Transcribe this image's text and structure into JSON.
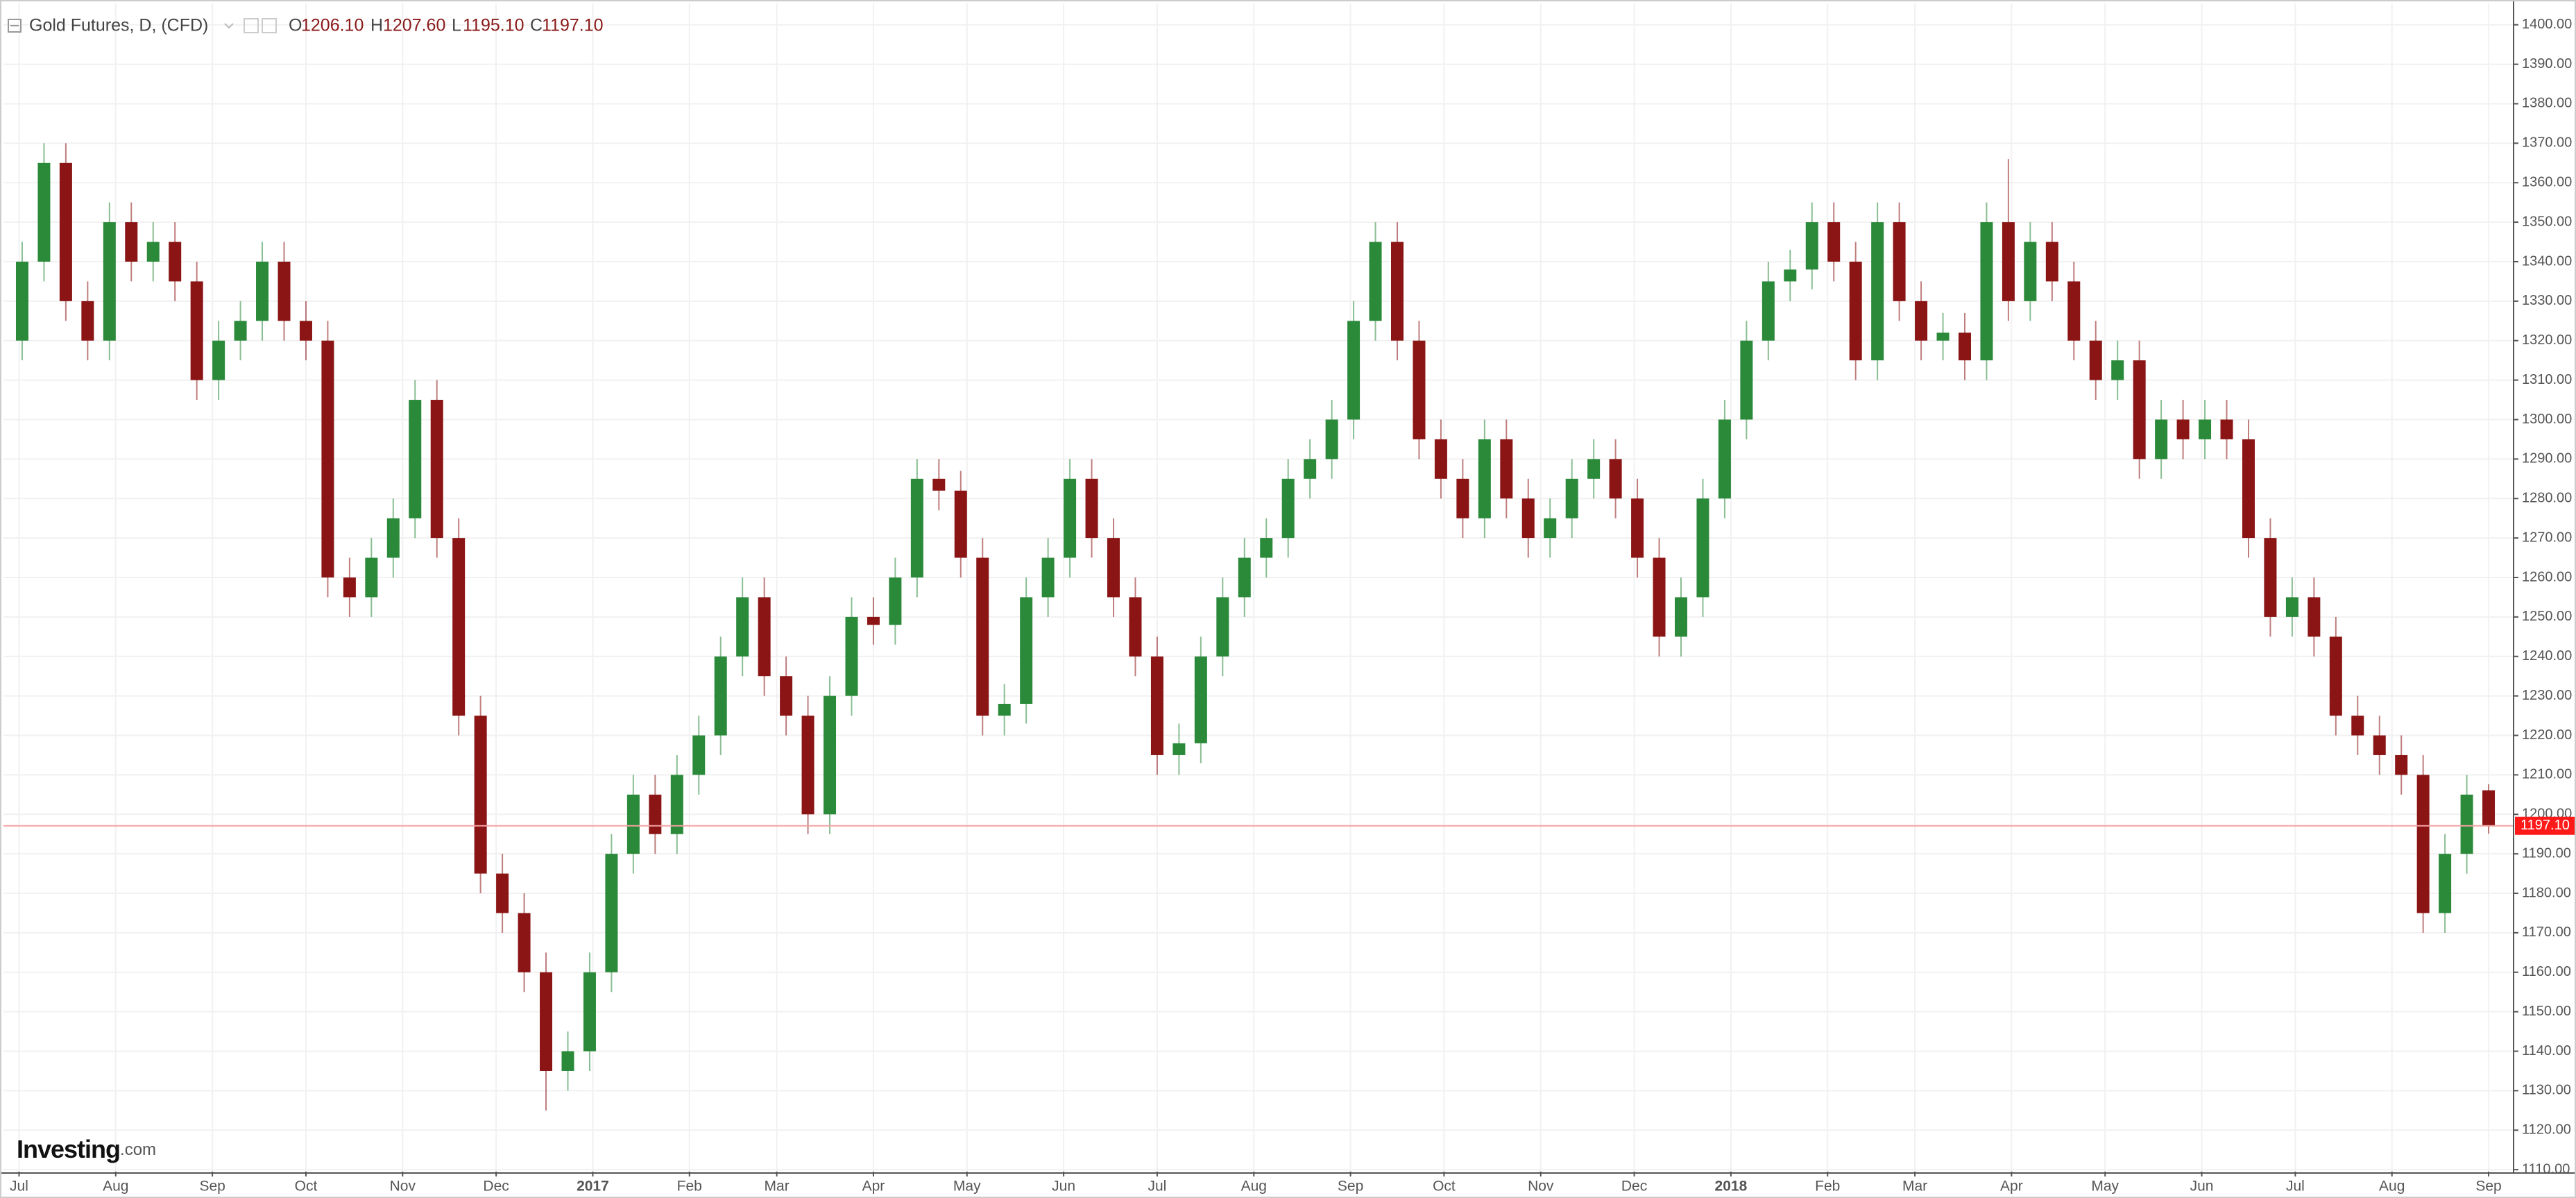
{
  "chart_data": {
    "type": "candlestick",
    "header": {
      "title": "Gold Futures, D, (CFD)",
      "ohlc": [
        {
          "name": "O",
          "value": "1206.10"
        },
        {
          "name": "H",
          "value": "1207.60"
        },
        {
          "name": "L",
          "value": "1195.10"
        },
        {
          "name": "C",
          "value": "1197.10"
        }
      ]
    },
    "logo": {
      "name": "Investing",
      "suffix": ".com"
    },
    "colors": {
      "up": "#2b8a3a",
      "down": "#8b1515",
      "last_price": "#f2a3a3",
      "last_price_label": "#ff1a1a",
      "grid": "#f1f1f1"
    },
    "grid": true,
    "last_price": {
      "value": 1197.1,
      "label": "1197.10"
    },
    "x": [
      1,
      8,
      15,
      22,
      29,
      36,
      43,
      50,
      57,
      64,
      71,
      78,
      85,
      92,
      99,
      106,
      113,
      120,
      127,
      134,
      141,
      148,
      155,
      162,
      169,
      176,
      183,
      190,
      197,
      204,
      211,
      218,
      225,
      232,
      239,
      246,
      253,
      260,
      267,
      274,
      281,
      288,
      295,
      302,
      309,
      316,
      323,
      330,
      337,
      344,
      351,
      358,
      365,
      372,
      379,
      386,
      393,
      400,
      407,
      414,
      421,
      428,
      435,
      442,
      449,
      456,
      463,
      470,
      477,
      484,
      491,
      498,
      505,
      512,
      519,
      526,
      533,
      540,
      547,
      554,
      561,
      568,
      575,
      582,
      589,
      596,
      603,
      610,
      617,
      624,
      631,
      638,
      645,
      652,
      659,
      666,
      673,
      680,
      687,
      694,
      701,
      708,
      715,
      722,
      729,
      736,
      743,
      750,
      757,
      764,
      771,
      778,
      785,
      792
    ],
    "open": [
      1320,
      1340,
      1365,
      1330,
      1320,
      1350,
      1340,
      1345,
      1335,
      1310,
      1320,
      1325,
      1340,
      1325,
      1320,
      1260,
      1255,
      1265,
      1275,
      1305,
      1270,
      1225,
      1185,
      1175,
      1160,
      1135,
      1140,
      1160,
      1190,
      1205,
      1195,
      1210,
      1220,
      1240,
      1255,
      1235,
      1225,
      1200,
      1230,
      1250,
      1248,
      1260,
      1285,
      1282,
      1265,
      1225,
      1228,
      1255,
      1265,
      1285,
      1270,
      1255,
      1240,
      1215,
      1218,
      1240,
      1255,
      1265,
      1270,
      1285,
      1290,
      1300,
      1325,
      1345,
      1320,
      1295,
      1285,
      1275,
      1295,
      1280,
      1270,
      1275,
      1285,
      1290,
      1280,
      1265,
      1245,
      1255,
      1280,
      1300,
      1320,
      1335,
      1338,
      1350,
      1340,
      1315,
      1350,
      1330,
      1320,
      1322,
      1315,
      1350,
      1330,
      1345,
      1335,
      1320,
      1310,
      1315,
      1290,
      1300,
      1295,
      1300,
      1295,
      1270,
      1250,
      1255,
      1245,
      1225,
      1220,
      1215,
      1210,
      1175,
      1190,
      1206.1
    ],
    "high": [
      1345,
      1370,
      1370,
      1335,
      1355,
      1355,
      1350,
      1350,
      1340,
      1325,
      1330,
      1345,
      1345,
      1330,
      1325,
      1265,
      1270,
      1280,
      1310,
      1310,
      1275,
      1230,
      1190,
      1180,
      1165,
      1145,
      1165,
      1195,
      1210,
      1210,
      1215,
      1225,
      1245,
      1260,
      1260,
      1240,
      1230,
      1235,
      1255,
      1255,
      1265,
      1290,
      1290,
      1287,
      1270,
      1233,
      1260,
      1270,
      1290,
      1290,
      1275,
      1260,
      1245,
      1223,
      1245,
      1260,
      1270,
      1275,
      1290,
      1295,
      1305,
      1330,
      1350,
      1350,
      1325,
      1300,
      1290,
      1300,
      1300,
      1285,
      1280,
      1290,
      1295,
      1295,
      1285,
      1270,
      1260,
      1285,
      1305,
      1325,
      1340,
      1343,
      1355,
      1355,
      1345,
      1355,
      1355,
      1335,
      1327,
      1327,
      1355,
      1366,
      1350,
      1350,
      1340,
      1325,
      1320,
      1320,
      1305,
      1305,
      1305,
      1305,
      1300,
      1275,
      1260,
      1260,
      1250,
      1230,
      1225,
      1220,
      1215,
      1195,
      1210,
      1207.6
    ],
    "low": [
      1315,
      1335,
      1325,
      1315,
      1315,
      1335,
      1335,
      1330,
      1305,
      1305,
      1315,
      1320,
      1320,
      1315,
      1255,
      1250,
      1250,
      1260,
      1270,
      1265,
      1220,
      1180,
      1170,
      1155,
      1125,
      1130,
      1135,
      1155,
      1185,
      1190,
      1190,
      1205,
      1215,
      1235,
      1230,
      1220,
      1195,
      1195,
      1225,
      1243,
      1243,
      1255,
      1277,
      1260,
      1220,
      1220,
      1223,
      1250,
      1260,
      1265,
      1250,
      1235,
      1210,
      1210,
      1213,
      1235,
      1250,
      1260,
      1265,
      1280,
      1285,
      1295,
      1320,
      1315,
      1290,
      1280,
      1270,
      1270,
      1275,
      1265,
      1265,
      1270,
      1280,
      1275,
      1260,
      1240,
      1240,
      1250,
      1275,
      1295,
      1315,
      1330,
      1333,
      1335,
      1310,
      1310,
      1325,
      1315,
      1315,
      1310,
      1310,
      1325,
      1325,
      1330,
      1315,
      1305,
      1305,
      1285,
      1285,
      1290,
      1290,
      1290,
      1265,
      1245,
      1245,
      1240,
      1220,
      1215,
      1210,
      1205,
      1170,
      1170,
      1185,
      1195.1
    ],
    "close": [
      1340,
      1365,
      1330,
      1320,
      1350,
      1340,
      1345,
      1335,
      1310,
      1320,
      1325,
      1340,
      1325,
      1320,
      1260,
      1255,
      1265,
      1275,
      1305,
      1270,
      1225,
      1185,
      1175,
      1160,
      1135,
      1140,
      1160,
      1190,
      1205,
      1195,
      1210,
      1220,
      1240,
      1255,
      1235,
      1225,
      1200,
      1230,
      1250,
      1248,
      1260,
      1285,
      1282,
      1265,
      1225,
      1228,
      1255,
      1265,
      1285,
      1270,
      1255,
      1240,
      1215,
      1218,
      1240,
      1255,
      1265,
      1270,
      1285,
      1290,
      1300,
      1325,
      1345,
      1320,
      1295,
      1285,
      1275,
      1295,
      1280,
      1270,
      1275,
      1285,
      1290,
      1280,
      1265,
      1245,
      1255,
      1280,
      1300,
      1320,
      1335,
      1338,
      1350,
      1340,
      1315,
      1350,
      1330,
      1320,
      1322,
      1315,
      1350,
      1330,
      1345,
      1335,
      1320,
      1310,
      1315,
      1290,
      1300,
      1295,
      1300,
      1295,
      1270,
      1250,
      1255,
      1245,
      1225,
      1220,
      1215,
      1210,
      1175,
      1190,
      1205,
      1197.1
    ],
    "xlim": [
      -5,
      800
    ],
    "xticks": [
      {
        "value": 0,
        "label": "Jul"
      },
      {
        "value": 31,
        "label": "Aug"
      },
      {
        "value": 62,
        "label": "Sep"
      },
      {
        "value": 92,
        "label": "Oct"
      },
      {
        "value": 123,
        "label": "Nov"
      },
      {
        "value": 153,
        "label": "Dec"
      },
      {
        "value": 184,
        "label": "2017"
      },
      {
        "value": 215,
        "label": "Feb"
      },
      {
        "value": 243,
        "label": "Mar"
      },
      {
        "value": 274,
        "label": "Apr"
      },
      {
        "value": 304,
        "label": "May"
      },
      {
        "value": 335,
        "label": "Jun"
      },
      {
        "value": 365,
        "label": "Jul"
      },
      {
        "value": 396,
        "label": "Aug"
      },
      {
        "value": 427,
        "label": "Sep"
      },
      {
        "value": 457,
        "label": "Oct"
      },
      {
        "value": 488,
        "label": "Nov"
      },
      {
        "value": 518,
        "label": "Dec"
      },
      {
        "value": 549,
        "label": "2018"
      },
      {
        "value": 580,
        "label": "Feb"
      },
      {
        "value": 608,
        "label": "Mar"
      },
      {
        "value": 639,
        "label": "Apr"
      },
      {
        "value": 669,
        "label": "May"
      },
      {
        "value": 700,
        "label": "Jun"
      },
      {
        "value": 730,
        "label": "Jul"
      },
      {
        "value": 761,
        "label": "Aug"
      },
      {
        "value": 792,
        "label": "Sep"
      }
    ],
    "ylim": [
      1109.5,
      1405.4
    ],
    "yticks": [
      {
        "value": 1110,
        "label": "1110.00"
      },
      {
        "value": 1120,
        "label": "1120.00"
      },
      {
        "value": 1130,
        "label": "1130.00"
      },
      {
        "value": 1140,
        "label": "1140.00"
      },
      {
        "value": 1150,
        "label": "1150.00"
      },
      {
        "value": 1160,
        "label": "1160.00"
      },
      {
        "value": 1170,
        "label": "1170.00"
      },
      {
        "value": 1180,
        "label": "1180.00"
      },
      {
        "value": 1190,
        "label": "1190.00"
      },
      {
        "value": 1200,
        "label": "1200.00"
      },
      {
        "value": 1210,
        "label": "1210.00"
      },
      {
        "value": 1220,
        "label": "1220.00"
      },
      {
        "value": 1230,
        "label": "1230.00"
      },
      {
        "value": 1240,
        "label": "1240.00"
      },
      {
        "value": 1250,
        "label": "1250.00"
      },
      {
        "value": 1260,
        "label": "1260.00"
      },
      {
        "value": 1270,
        "label": "1270.00"
      },
      {
        "value": 1280,
        "label": "1280.00"
      },
      {
        "value": 1290,
        "label": "1290.00"
      },
      {
        "value": 1300,
        "label": "1300.00"
      },
      {
        "value": 1310,
        "label": "1310.00"
      },
      {
        "value": 1320,
        "label": "1320.00"
      },
      {
        "value": 1330,
        "label": "1330.00"
      },
      {
        "value": 1340,
        "label": "1340.00"
      },
      {
        "value": 1350,
        "label": "1350.00"
      },
      {
        "value": 1360,
        "label": "1360.00"
      },
      {
        "value": 1370,
        "label": "1370.00"
      },
      {
        "value": 1380,
        "label": "1380.00"
      },
      {
        "value": 1390,
        "label": "1390.00"
      },
      {
        "value": 1400,
        "label": "1400.00"
      }
    ]
  }
}
